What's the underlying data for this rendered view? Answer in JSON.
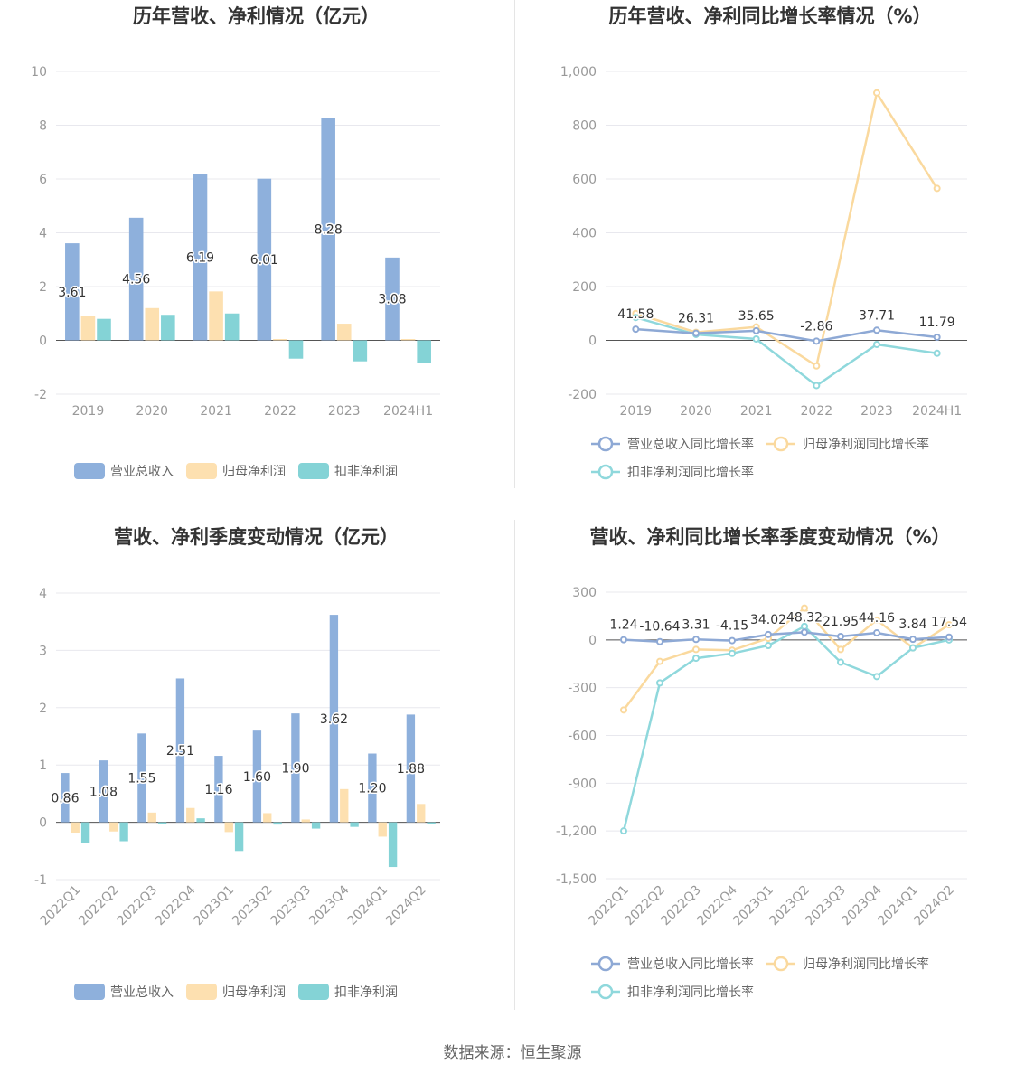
{
  "source_label": "数据来源：恒生聚源",
  "colors": {
    "revenue": "#8eb0dc",
    "net_profit": "#fde0b0",
    "deducted": "#84d3d6",
    "revenue_line": "#8ea9d5",
    "net_line": "#fad99e",
    "deducted_line": "#8fd8dc"
  },
  "chart_data": [
    {
      "type": "bar",
      "title": "历年营收、净利情况（亿元）",
      "categories": [
        "2019",
        "2020",
        "2021",
        "2022",
        "2023",
        "2024H1"
      ],
      "ylim": [
        -2,
        10
      ],
      "yticks": [
        -2,
        0,
        2,
        4,
        6,
        8,
        10
      ],
      "ytick_labels": [
        "-2",
        "0",
        "2",
        "4",
        "6",
        "8",
        "10"
      ],
      "label_series": 0,
      "series": [
        {
          "name": "营业总收入",
          "values": [
            3.61,
            4.56,
            6.19,
            6.01,
            8.28,
            3.08
          ]
        },
        {
          "name": "归母净利润",
          "values": [
            0.9,
            1.2,
            1.82,
            0.05,
            0.62,
            0.05
          ]
        },
        {
          "name": "扣非净利润",
          "values": [
            0.8,
            0.95,
            1.0,
            -0.68,
            -0.78,
            -0.83
          ]
        }
      ],
      "legend": "bottom",
      "grid": true
    },
    {
      "type": "line",
      "title": "历年营收、净利同比增长率情况（%）",
      "categories": [
        "2019",
        "2020",
        "2021",
        "2022",
        "2023",
        "2024H1"
      ],
      "ylim": [
        -200,
        1000
      ],
      "yticks": [
        -200,
        0,
        200,
        400,
        600,
        800,
        1000
      ],
      "ytick_labels": [
        "-200",
        "0",
        "200",
        "400",
        "600",
        "800",
        "1,000"
      ],
      "label_series": 0,
      "series": [
        {
          "name": "营业总收入同比增长率",
          "values": [
            41.58,
            26.31,
            35.65,
            -2.86,
            37.71,
            11.79
          ]
        },
        {
          "name": "归母净利润同比增长率",
          "values": [
            100,
            30,
            50,
            -95,
            920,
            565
          ]
        },
        {
          "name": "扣非净利润同比增长率",
          "values": [
            85,
            22,
            5,
            -168,
            -15,
            -48
          ]
        }
      ],
      "legend": "bottom",
      "grid": true
    },
    {
      "type": "bar",
      "title": "营收、净利季度变动情况（亿元）",
      "categories": [
        "2022Q1",
        "2022Q2",
        "2022Q3",
        "2022Q4",
        "2023Q1",
        "2023Q2",
        "2023Q3",
        "2023Q4",
        "2024Q1",
        "2024Q2"
      ],
      "ylim": [
        -1,
        4
      ],
      "yticks": [
        -1,
        0,
        1,
        2,
        3,
        4
      ],
      "ytick_labels": [
        "-1",
        "0",
        "1",
        "2",
        "3",
        "4"
      ],
      "label_series": 0,
      "rotate_xticks": true,
      "series": [
        {
          "name": "营业总收入",
          "values": [
            0.86,
            1.08,
            1.55,
            2.51,
            1.16,
            1.6,
            1.9,
            3.62,
            1.2,
            1.88
          ]
        },
        {
          "name": "归母净利润",
          "values": [
            -0.18,
            -0.16,
            0.17,
            0.25,
            -0.17,
            0.16,
            0.05,
            0.58,
            -0.25,
            0.32
          ]
        },
        {
          "name": "扣非净利润",
          "values": [
            -0.36,
            -0.33,
            -0.03,
            0.07,
            -0.5,
            -0.04,
            -0.11,
            -0.08,
            -0.78,
            -0.03
          ]
        }
      ],
      "legend": "bottom",
      "grid": true
    },
    {
      "type": "line",
      "title": "营收、净利同比增长率季度变动情况（%）",
      "categories": [
        "2022Q1",
        "2022Q2",
        "2022Q3",
        "2022Q4",
        "2023Q1",
        "2023Q2",
        "2023Q3",
        "2023Q4",
        "2024Q1",
        "2024Q2"
      ],
      "ylim": [
        -1500,
        300
      ],
      "yticks": [
        -1500,
        -1200,
        -900,
        -600,
        -300,
        0,
        300
      ],
      "ytick_labels": [
        "-1,500",
        "-1,200",
        "-900",
        "-600",
        "-300",
        "0",
        "300"
      ],
      "label_series": 0,
      "rotate_xticks": true,
      "series": [
        {
          "name": "营业总收入同比增长率",
          "values": [
            1.24,
            -10.64,
            3.31,
            -4.15,
            34.02,
            48.32,
            21.95,
            44.16,
            3.84,
            17.54
          ]
        },
        {
          "name": "归母净利润同比增长率",
          "values": [
            -440,
            -135,
            -60,
            -65,
            10,
            200,
            -60,
            125,
            -50,
            95
          ]
        },
        {
          "name": "扣非净利润同比增长率",
          "values": [
            -1200,
            -270,
            -115,
            -85,
            -35,
            85,
            -140,
            -230,
            -50,
            0
          ]
        }
      ],
      "legend": "bottom",
      "grid": true
    }
  ]
}
